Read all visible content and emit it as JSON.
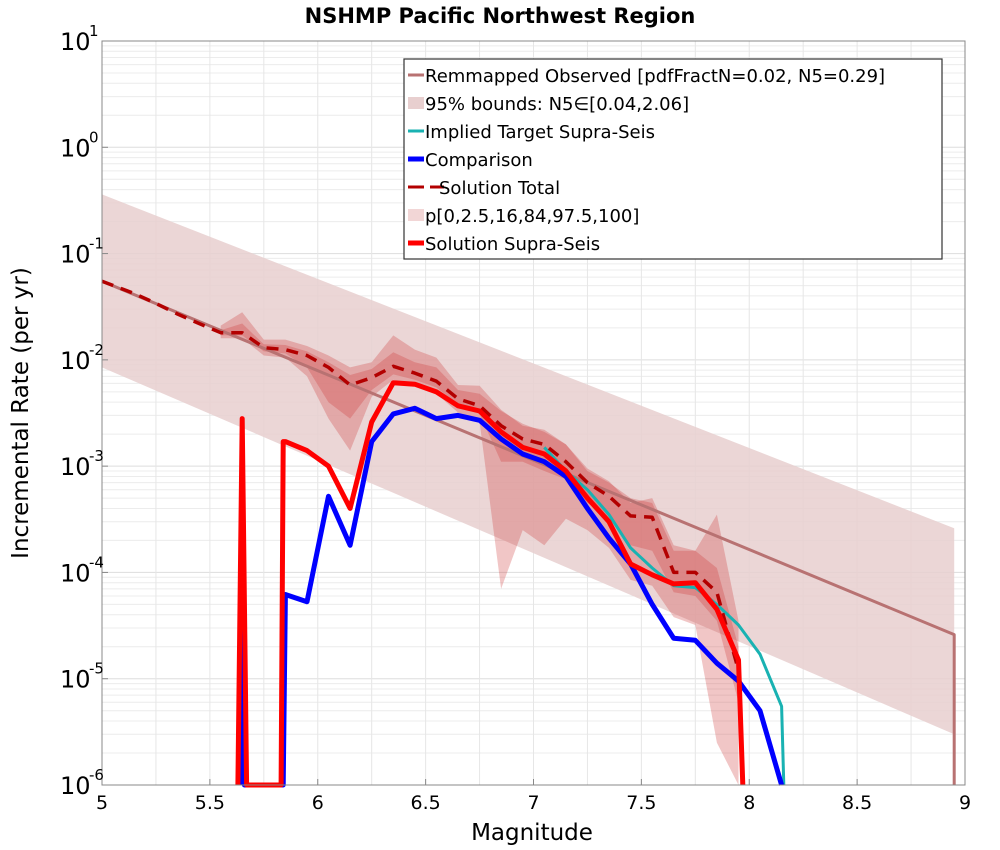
{
  "chart_data": {
    "type": "line",
    "title": "NSHMP Pacific Northwest Region",
    "xlabel": "Magnitude",
    "ylabel": "Incremental Rate (per yr)",
    "xlim": [
      5,
      9
    ],
    "ylim": [
      1e-06,
      10
    ],
    "yscale": "log",
    "grid": true,
    "legend_position": "top-right",
    "xticks": [
      "5",
      "5.5",
      "6",
      "6.5",
      "7",
      "7.5",
      "8",
      "8.5",
      "9"
    ],
    "xtick_values": [
      5,
      5.5,
      6,
      6.5,
      7,
      7.5,
      8,
      8.5,
      9
    ],
    "yticks": [
      {
        "base": "10",
        "exp": "-6",
        "value": 1e-06
      },
      {
        "base": "10",
        "exp": "-5",
        "value": 1e-05
      },
      {
        "base": "10",
        "exp": "-4",
        "value": 0.0001
      },
      {
        "base": "10",
        "exp": "-3",
        "value": 0.001
      },
      {
        "base": "10",
        "exp": "-2",
        "value": 0.01
      },
      {
        "base": "10",
        "exp": "-1",
        "value": 0.1
      },
      {
        "base": "10",
        "exp": "0",
        "value": 1
      },
      {
        "base": "10",
        "exp": "1",
        "value": 10
      }
    ],
    "legend": [
      {
        "label": "Remmapped Observed [pdfFractN=0.02, N5=0.29]",
        "kind": "line",
        "color": "#b87272"
      },
      {
        "label": "95% bounds: N5∈[0.04,2.06]",
        "kind": "band",
        "color": "#e8cfcf"
      },
      {
        "label": "Implied Target Supra-Seis",
        "kind": "line",
        "color": "#19b2b2"
      },
      {
        "label": "Comparison",
        "kind": "line-thick",
        "color": "#0000ff"
      },
      {
        "label": "Solution Total",
        "kind": "dashed",
        "color": "#b30000"
      },
      {
        "label": "p[0,2.5,16,84,97.5,100]",
        "kind": "band",
        "color": "#f2d6d6"
      },
      {
        "label": "Solution Supra-Seis",
        "kind": "line-thick",
        "color": "#ff0000"
      }
    ],
    "band_95": {
      "x": [
        5,
        8.95
      ],
      "lower": [
        0.0085,
        3e-06
      ],
      "upper": [
        0.36,
        0.00026
      ],
      "color": "#e8cfcf"
    },
    "series": [
      {
        "name": "Remmapped Observed [pdfFractN=0.02, N5=0.29]",
        "color": "#b87272",
        "x": [
          5,
          8.95,
          8.95
        ],
        "y": [
          0.055,
          2.6e-05,
          1e-06
        ]
      },
      {
        "name": "Implied Target Supra-Seis",
        "color": "#19b2b2",
        "x": [
          7.05,
          7.15,
          7.25,
          7.35,
          7.45,
          7.55,
          7.65,
          7.75,
          7.85,
          7.95,
          8.05,
          8.15,
          8.16
        ],
        "y": [
          0.0015,
          0.0009,
          0.0006,
          0.00035,
          0.00017,
          0.00011,
          7.5e-05,
          7.2e-05,
          5e-05,
          3.2e-05,
          1.7e-05,
          5.5e-06,
          1e-06
        ]
      },
      {
        "name": "Comparison",
        "color": "#0000ff",
        "x": [
          5.64,
          5.65,
          5.66,
          5.84,
          5.85,
          5.95,
          6.05,
          6.15,
          6.25,
          6.35,
          6.45,
          6.55,
          6.65,
          6.75,
          6.85,
          6.95,
          7.05,
          7.15,
          7.25,
          7.35,
          7.45,
          7.55,
          7.65,
          7.75,
          7.85,
          7.95,
          8.05,
          8.15
        ],
        "y": [
          1e-06,
          2.8e-05,
          1e-06,
          1e-06,
          6.2e-05,
          5.3e-05,
          0.00052,
          0.00018,
          0.0017,
          0.0031,
          0.0035,
          0.0028,
          0.003,
          0.0027,
          0.0018,
          0.0013,
          0.0011,
          0.0008,
          0.0004,
          0.00021,
          0.00012,
          5e-05,
          2.4e-05,
          2.3e-05,
          1.4e-05,
          9.5e-06,
          5e-06,
          1e-06
        ]
      },
      {
        "name": "Solution Total",
        "color": "#b30000",
        "x": [
          5,
          5.15,
          5.25,
          5.35,
          5.45,
          5.55,
          5.65,
          5.75,
          5.85,
          5.95,
          6.05,
          6.15,
          6.25,
          6.35,
          6.45,
          6.55,
          6.65,
          6.75,
          6.85,
          6.95,
          7.05,
          7.15,
          7.25,
          7.35,
          7.45,
          7.55,
          7.65,
          7.75,
          7.85,
          7.95
        ],
        "y": [
          0.055,
          0.042,
          0.034,
          0.027,
          0.022,
          0.018,
          0.018,
          0.013,
          0.0125,
          0.011,
          0.0085,
          0.0058,
          0.0068,
          0.0087,
          0.0075,
          0.0063,
          0.0043,
          0.0037,
          0.0024,
          0.0018,
          0.0016,
          0.0011,
          0.0007,
          0.00052,
          0.00034,
          0.00033,
          0.0001,
          0.0001,
          6.5e-05,
          1.2e-05
        ]
      },
      {
        "name": "Solution Supra-Seis",
        "color": "#ff0000",
        "x": [
          5.63,
          5.65,
          5.67,
          5.83,
          5.84,
          5.85,
          5.95,
          6.05,
          6.15,
          6.25,
          6.35,
          6.45,
          6.55,
          6.65,
          6.75,
          6.85,
          6.95,
          7.05,
          7.15,
          7.25,
          7.35,
          7.45,
          7.55,
          7.65,
          7.75,
          7.85,
          7.95,
          7.97
        ],
        "y": [
          1e-06,
          0.0028,
          1e-06,
          1e-06,
          0.0017,
          0.0017,
          0.0014,
          0.001,
          0.0004,
          0.0026,
          0.0061,
          0.0059,
          0.005,
          0.0037,
          0.0033,
          0.0021,
          0.0015,
          0.0013,
          0.0009,
          0.0005,
          0.0003,
          0.00012,
          9.5e-05,
          7.8e-05,
          8e-05,
          4.5e-05,
          1.5e-05,
          1e-06
        ]
      }
    ],
    "percentile_bands": {
      "color": "#cc3333",
      "x": [
        5.55,
        5.65,
        5.75,
        5.85,
        5.95,
        6.05,
        6.15,
        6.25,
        6.35,
        6.45,
        6.55,
        6.65,
        6.75,
        6.85,
        6.95,
        7.05,
        7.15,
        7.25,
        7.35,
        7.45,
        7.55,
        7.65,
        7.75,
        7.85,
        7.95
      ],
      "outer_lower": [
        0.016,
        0.016,
        0.011,
        0.0105,
        0.007,
        0.0028,
        0.0014,
        0.0045,
        0.0065,
        0.0057,
        0.0048,
        0.0032,
        0.0026,
        7e-05,
        0.00025,
        0.00018,
        0.00032,
        0.00025,
        0.00017,
        8.5e-05,
        7.5e-05,
        3.8e-05,
        3.2e-05,
        2.5e-06,
        1e-06
      ],
      "outer_upper": [
        0.021,
        0.028,
        0.0155,
        0.0155,
        0.0135,
        0.011,
        0.0085,
        0.0095,
        0.017,
        0.0125,
        0.0105,
        0.0058,
        0.0057,
        0.0034,
        0.0024,
        0.0022,
        0.0016,
        0.00095,
        0.00072,
        0.00045,
        0.0005,
        0.00018,
        0.00016,
        0.00035,
        3.5e-05
      ],
      "inner_lower": [
        0.017,
        0.017,
        0.012,
        0.0115,
        0.0085,
        0.004,
        0.0028,
        0.0052,
        0.0073,
        0.0065,
        0.0055,
        0.0038,
        0.0031,
        0.0011,
        0.0011,
        0.0009,
        0.00075,
        0.00045,
        0.00032,
        0.00018,
        0.00016,
        6.5e-05,
        6e-05,
        3.5e-05,
        6e-06
      ],
      "inner_upper": [
        0.019,
        0.022,
        0.014,
        0.0138,
        0.012,
        0.0095,
        0.0072,
        0.0082,
        0.0118,
        0.0095,
        0.0085,
        0.0052,
        0.0048,
        0.0033,
        0.0025,
        0.0021,
        0.0016,
        0.0009,
        0.0007,
        0.0005,
        0.00045,
        0.00016,
        0.00016,
        0.00011,
        2e-05
      ]
    }
  }
}
